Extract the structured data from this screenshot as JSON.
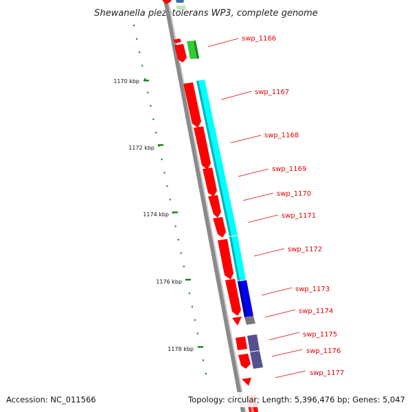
{
  "title": "Shewanella piezotolerans WP3, complete genome",
  "accession": "Accession: NC_011566",
  "summary": "Topology: circular; Length: 5,396,476 bp; Genes: 5,047",
  "colors": {
    "backbone": "#8a8a8a",
    "ruler": "#1a8a1a",
    "label": "#e00000",
    "cds": "#ff0000",
    "cyan": "#00ffff",
    "blue": "#0000ee",
    "slate": "#55508f",
    "grey": "#777777",
    "green": "#33cc33"
  },
  "ruler_labels": [
    "1170 kbp",
    "1172 kbp",
    "1174 kbp",
    "1176 kbp",
    "1178 kbp"
  ],
  "gene_labels": [
    "swp_1166",
    "swp_1167",
    "swp_1168",
    "swp_1169",
    "swp_1170",
    "swp_1171",
    "swp_1172",
    "swp_1173",
    "swp_1174",
    "swp_1175",
    "swp_1176",
    "swp_1177"
  ]
}
